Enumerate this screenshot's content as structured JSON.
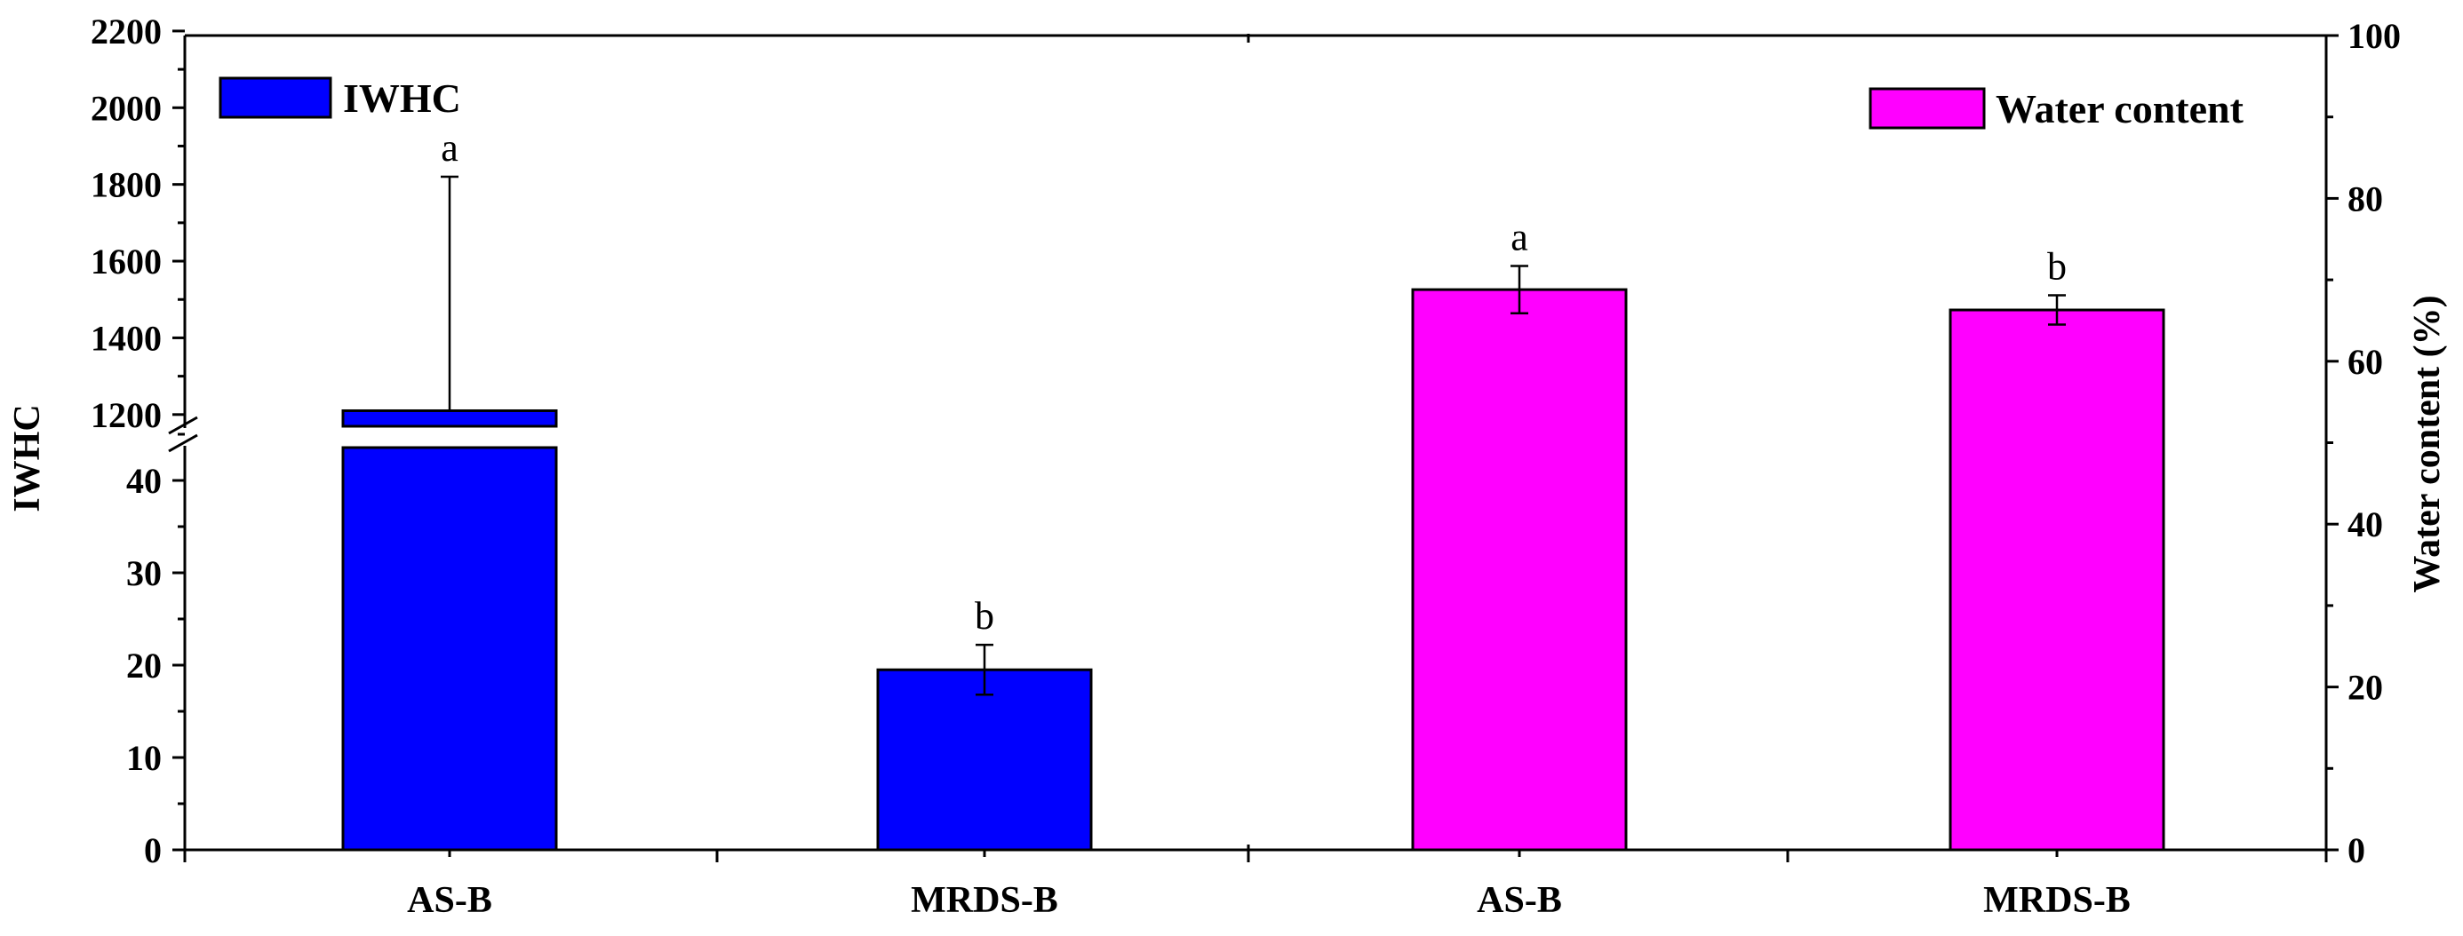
{
  "chart_data": [
    {
      "type": "bar",
      "panel": "left",
      "title": "",
      "ylabel": "IWHC",
      "y_axis_break": {
        "lower_range": [
          0,
          50
        ],
        "upper_range": [
          1100,
          2200
        ]
      },
      "y_ticks_lower": [
        0,
        10,
        20,
        30,
        40
      ],
      "y_ticks_upper": [
        1200,
        1400,
        1600,
        1800,
        2000,
        2200
      ],
      "categories": [
        "AS-B",
        "MRDS-B"
      ],
      "series": [
        {
          "name": "IWHC",
          "color": "#0000ff",
          "values": [
            1210,
            19.5
          ],
          "error_upper": [
            1820,
            22.2
          ],
          "error_lower": [
            null,
            16.8
          ],
          "significance": [
            "a",
            "b"
          ]
        }
      ],
      "legend_position": "top-left"
    },
    {
      "type": "bar",
      "panel": "right",
      "title": "",
      "ylabel": "Water content (%)",
      "ylim": [
        0,
        100
      ],
      "y_ticks": [
        0,
        20,
        40,
        60,
        80,
        100
      ],
      "categories": [
        "AS-B",
        "MRDS-B"
      ],
      "series": [
        {
          "name": "Water content",
          "color": "#ff00ff",
          "values": [
            68.8,
            66.3
          ],
          "error": [
            2.9,
            1.8
          ],
          "significance": [
            "a",
            "b"
          ]
        }
      ],
      "legend_position": "top-right"
    }
  ]
}
